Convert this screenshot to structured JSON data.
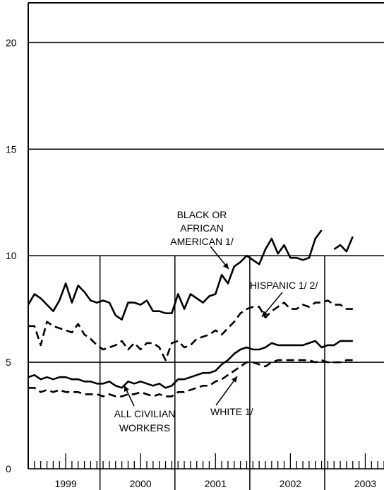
{
  "chart_data": {
    "type": "line",
    "title": "",
    "xlabel": "",
    "ylabel": "",
    "ylim": [
      0,
      22
    ],
    "xlim": [
      1999.0,
      2003.75
    ],
    "grid": "horizontal",
    "y_ticks": [
      0,
      5,
      10,
      15,
      20
    ],
    "y_tick_labels": [
      "0",
      "5",
      "10",
      "15",
      "20"
    ],
    "x_tick_labels": [
      "1999",
      "2000",
      "2001",
      "2002",
      "2003"
    ],
    "series": [
      {
        "name": "BLACK OR AFRICAN AMERICAN 1/",
        "style": "solid",
        "values": [
          7.7,
          8.2,
          8.0,
          7.7,
          7.4,
          7.9,
          8.7,
          7.8,
          8.6,
          8.3,
          7.9,
          7.8,
          7.9,
          7.8,
          7.2,
          7.0,
          7.8,
          7.8,
          7.7,
          7.9,
          7.4,
          7.4,
          7.3,
          7.3,
          8.2,
          7.5,
          8.2,
          8.0,
          7.8,
          8.1,
          8.2,
          9.1,
          8.7,
          9.5,
          9.7,
          10.0,
          9.8,
          9.6,
          10.3,
          10.8,
          10.1,
          10.5,
          9.9,
          9.9,
          9.8,
          9.9,
          10.8,
          11.2,
          null,
          10.3,
          10.5,
          10.2,
          10.9
        ]
      },
      {
        "name": "HISPANIC 1/ 2/",
        "style": "dashed",
        "values": [
          6.7,
          6.7,
          5.8,
          6.9,
          6.7,
          6.6,
          6.5,
          6.4,
          6.8,
          6.3,
          6.1,
          5.8,
          5.6,
          5.7,
          5.8,
          6.0,
          5.6,
          5.9,
          5.6,
          5.9,
          5.9,
          5.7,
          5.1,
          5.9,
          6.0,
          5.7,
          5.8,
          6.1,
          6.2,
          6.3,
          6.5,
          6.3,
          6.6,
          6.9,
          7.3,
          7.5,
          7.6,
          7.6,
          7.1,
          7.4,
          7.6,
          7.8,
          7.5,
          7.5,
          7.7,
          7.6,
          7.8,
          7.8,
          7.9,
          7.7,
          7.7,
          7.5,
          7.5
        ]
      },
      {
        "name": "ALL CIVILIAN WORKERS",
        "style": "solid",
        "values": [
          4.3,
          4.4,
          4.2,
          4.3,
          4.2,
          4.3,
          4.3,
          4.2,
          4.2,
          4.1,
          4.1,
          4.0,
          4.0,
          4.1,
          3.9,
          3.8,
          4.1,
          4.0,
          4.1,
          4.0,
          3.9,
          4.0,
          3.8,
          3.9,
          4.2,
          4.2,
          4.3,
          4.4,
          4.5,
          4.5,
          4.6,
          4.9,
          5.1,
          5.4,
          5.6,
          5.7,
          5.6,
          5.6,
          5.7,
          5.9,
          5.8,
          5.8,
          5.8,
          5.8,
          5.8,
          5.9,
          6.0,
          5.7,
          5.8,
          5.8,
          6.0,
          6.0,
          6.0
        ]
      },
      {
        "name": "WHITE 1/",
        "style": "dashed",
        "values": [
          3.8,
          3.8,
          3.6,
          3.7,
          3.6,
          3.7,
          3.6,
          3.6,
          3.6,
          3.5,
          3.5,
          3.5,
          3.4,
          3.5,
          3.4,
          3.4,
          3.5,
          3.5,
          3.6,
          3.5,
          3.4,
          3.5,
          3.4,
          3.4,
          3.6,
          3.6,
          3.7,
          3.8,
          3.9,
          3.9,
          4.1,
          4.2,
          4.4,
          4.6,
          4.8,
          5.0,
          5.0,
          4.9,
          4.8,
          5.0,
          5.1,
          5.1,
          5.1,
          5.1,
          5.1,
          5.1,
          5.0,
          5.1,
          5.0,
          5.0,
          5.0,
          5.1,
          5.1
        ]
      }
    ],
    "annotations": [
      {
        "name": "black",
        "lines": [
          "BLACK OR",
          "AFRICAN",
          "AMERICAN 1/"
        ]
      },
      {
        "name": "hispanic",
        "lines": [
          "HISPANIC 1/  2/"
        ]
      },
      {
        "name": "all",
        "lines": [
          "ALL CIVILIAN",
          "WORKERS"
        ]
      },
      {
        "name": "white",
        "lines": [
          "WHITE 1/"
        ]
      }
    ]
  }
}
